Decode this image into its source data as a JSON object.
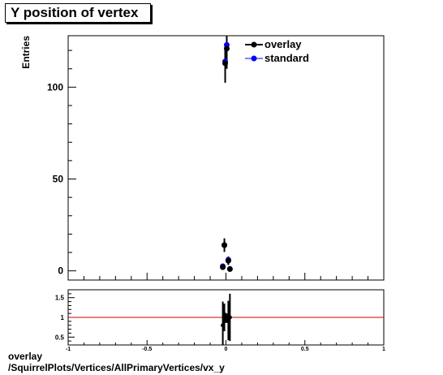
{
  "title": "Y position of vertex",
  "caption": {
    "line1": "overlay",
    "line2": "/SquirrelPlots/Vertices/AllPrimaryVertices/vx_y"
  },
  "colors": {
    "overlay": "#000000",
    "standard": "#0000ff",
    "ratio_line": "#cc0000"
  },
  "chart_data": [
    {
      "type": "scatter",
      "ylabel": "Entries",
      "xlim": [
        -1,
        1
      ],
      "ylim": [
        -5,
        128
      ],
      "x_ticks": [
        "-1",
        "-0.5",
        "0",
        "0.5",
        "1"
      ],
      "y_ticks": [
        {
          "value": 0,
          "label": "0"
        },
        {
          "value": 50,
          "label": "50"
        },
        {
          "value": 100,
          "label": "100"
        }
      ],
      "legend_position": "top-right",
      "series": [
        {
          "name": "overlay",
          "points": [
            {
              "x": -0.02,
              "y": 2,
              "err": 1.5
            },
            {
              "x": -0.01,
              "y": 14,
              "err": 3.7
            },
            {
              "x": -0.005,
              "y": 113,
              "err": 10.6
            },
            {
              "x": 0.005,
              "y": 121,
              "err": 11
            },
            {
              "x": 0.015,
              "y": 5.5,
              "err": 2.3
            },
            {
              "x": 0.025,
              "y": 1,
              "err": 1
            }
          ]
        },
        {
          "name": "standard",
          "points": [
            {
              "x": -0.02,
              "y": 2.5
            },
            {
              "x": -0.01,
              "y": 14
            },
            {
              "x": -0.005,
              "y": 114
            },
            {
              "x": 0.005,
              "y": 123
            },
            {
              "x": 0.015,
              "y": 6
            },
            {
              "x": 0.025,
              "y": 1
            }
          ]
        }
      ]
    },
    {
      "type": "scatter",
      "xlim": [
        -1,
        1
      ],
      "ylim": [
        0.3,
        1.7
      ],
      "x_ticks": [
        "-1",
        "-0.5",
        "0",
        "0.5",
        "1"
      ],
      "y_ticks": [
        {
          "value": 0.5,
          "label": "0.5"
        },
        {
          "value": 1,
          "label": "1"
        },
        {
          "value": 1.5,
          "label": "1.5"
        }
      ],
      "reference_line": 1,
      "points": [
        {
          "x": -0.02,
          "y": 0.8,
          "err": 0.6
        },
        {
          "x": -0.01,
          "y": 1.0,
          "err": 0.35
        },
        {
          "x": -0.005,
          "y": 0.99,
          "err": 0.13
        },
        {
          "x": 0.005,
          "y": 0.98,
          "err": 0.12
        },
        {
          "x": 0.015,
          "y": 0.92,
          "err": 0.5
        },
        {
          "x": 0.025,
          "y": 1.0,
          "err": 0.6
        }
      ]
    }
  ]
}
